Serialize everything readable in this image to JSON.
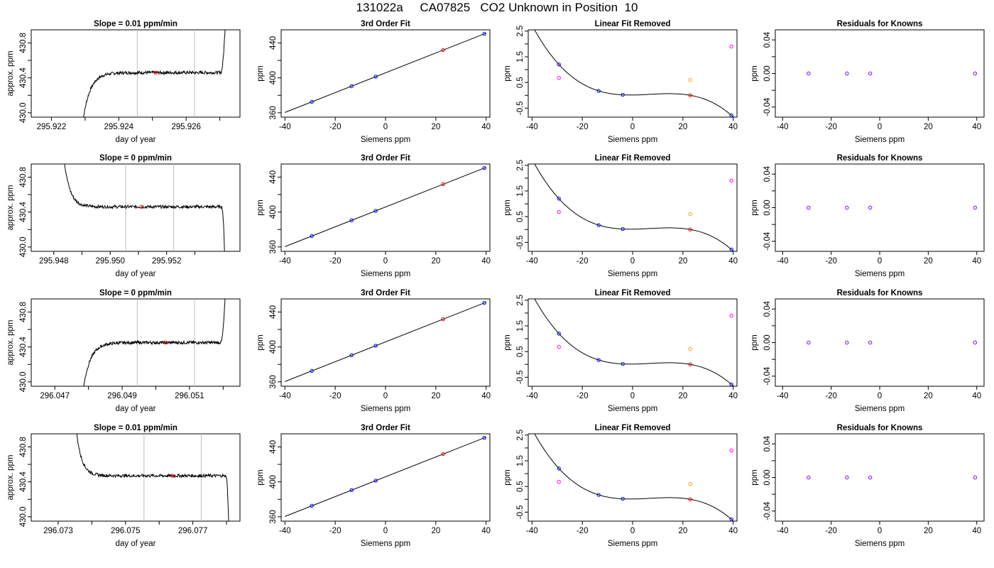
{
  "page_title": "131022a     CA07825   CO2 Unknown in Position  10",
  "colors": {
    "series_line": "#000000",
    "marker_blue": "#0000ff",
    "marker_red": "#ff0000",
    "marker_magenta": "#ff00ff",
    "marker_orange": "#ffa500",
    "marker_purple": "#7f00ff",
    "vertical_lines": "#bebebe"
  },
  "chart_data": [
    {
      "row": 0,
      "type": "line",
      "title": "Slope =  0.01  ppm/min",
      "xlabel": "day of year",
      "ylabel": "approx. ppm",
      "xlim": [
        295.9214,
        295.9276
      ],
      "ylim": [
        429.95,
        430.95
      ],
      "xticks": [
        "295.922",
        "295.924",
        "295.926"
      ],
      "xtick_values": [
        295.922,
        295.924,
        295.926
      ],
      "xtick_minor": [
        295.923,
        295.925,
        295.927
      ],
      "yticks": [
        "430.0",
        "430.4",
        "430.8"
      ],
      "ytick_values": [
        430.0,
        430.4,
        430.8
      ],
      "ytick_minor": [
        430.2,
        430.6
      ],
      "shape": "rise",
      "start_x": 295.9229,
      "end_x": 295.9272,
      "level": 430.46,
      "vlines": [
        295.92455,
        295.92625
      ],
      "avg_point": [
        295.9251,
        430.46
      ]
    },
    {
      "row": 0,
      "type": "scatter",
      "title": "3rd Order Fit",
      "xlabel": "Siemens ppm",
      "ylabel": "ppm",
      "xlim": [
        -41.5,
        41.5
      ],
      "ylim": [
        355,
        455
      ],
      "xticks": [
        "-40",
        "-20",
        "0",
        "20",
        "40"
      ],
      "xtick_values": [
        -40,
        -20,
        0,
        20,
        40
      ],
      "yticks": [
        "360",
        "400",
        "440"
      ],
      "ytick_values": [
        360,
        400,
        440
      ],
      "ytick_minor": [
        380,
        420
      ],
      "fit_line": [
        [
          -40,
          360.4
        ],
        [
          40,
          451.2
        ]
      ],
      "points": [
        {
          "x": -29.3,
          "y": 372.6,
          "color": "blue"
        },
        {
          "x": -13.5,
          "y": 390.5,
          "color": "blue"
        },
        {
          "x": -3.9,
          "y": 401.4,
          "color": "blue"
        },
        {
          "x": 39.3,
          "y": 450.5,
          "color": "blue"
        },
        {
          "x": 22.9,
          "y": 431.9,
          "color": "red"
        }
      ]
    },
    {
      "row": 0,
      "type": "scatter",
      "title": "Linear Fit Removed",
      "xlabel": "Siemens ppm",
      "ylabel": "ppm",
      "xlim": [
        -41.5,
        41.5
      ],
      "ylim": [
        -0.85,
        2.55
      ],
      "xticks": [
        "-40",
        "-20",
        "0",
        "20",
        "40"
      ],
      "xtick_values": [
        -40,
        -20,
        0,
        20,
        40
      ],
      "yticks": [
        "-0.5",
        "0.5",
        "1.5",
        "2.5"
      ],
      "ytick_values": [
        -0.5,
        0.5,
        1.5,
        2.5
      ],
      "ytick_minor": [
        0,
        1,
        2
      ],
      "curve": "cubic",
      "points": [
        {
          "x": -29.3,
          "y": 1.2,
          "color": "blue"
        },
        {
          "x": -13.5,
          "y": 0.17,
          "color": "blue"
        },
        {
          "x": -3.9,
          "y": 0.02,
          "color": "blue"
        },
        {
          "x": 39.3,
          "y": -0.78,
          "color": "blue"
        },
        {
          "x": 22.9,
          "y": 0.0,
          "color": "red"
        },
        {
          "x": -29.3,
          "y": 0.68,
          "color": "magenta"
        },
        {
          "x": 39.3,
          "y": 1.9,
          "color": "magenta"
        },
        {
          "x": 22.9,
          "y": 0.6,
          "color": "orange"
        }
      ]
    },
    {
      "row": 0,
      "type": "scatter",
      "title": "Residuals for Knowns",
      "xlabel": "Siemens ppm",
      "ylabel": "ppm",
      "xlim": [
        -43,
        43
      ],
      "ylim": [
        -0.052,
        0.052
      ],
      "xticks": [
        "-40",
        "-20",
        "0",
        "20",
        "40"
      ],
      "xtick_values": [
        -40,
        -20,
        0,
        20,
        40
      ],
      "yticks": [
        "-0.04",
        "0.00",
        "0.04"
      ],
      "ytick_values": [
        -0.04,
        0.0,
        0.04
      ],
      "ytick_minor": [
        -0.02,
        0.02
      ],
      "points": [
        {
          "x": -29.3,
          "y": 0,
          "color": "purple"
        },
        {
          "x": -13.5,
          "y": 0,
          "color": "purple"
        },
        {
          "x": -3.9,
          "y": 0,
          "color": "purple"
        },
        {
          "x": 39.3,
          "y": 0,
          "color": "purple"
        }
      ]
    },
    {
      "row": 1,
      "type": "line",
      "title": "Slope =  0  ppm/min",
      "xlabel": "day of year",
      "ylabel": "approx. ppm",
      "xlim": [
        295.9472,
        295.9546
      ],
      "ylim": [
        429.95,
        430.95
      ],
      "xticks": [
        "295.948",
        "295.950",
        "295.952"
      ],
      "xtick_values": [
        295.948,
        295.95,
        295.952
      ],
      "xtick_minor": [
        295.949,
        295.951,
        295.953
      ],
      "yticks": [
        "430.0",
        "430.4",
        "430.8"
      ],
      "ytick_values": [
        430.0,
        430.4,
        430.8
      ],
      "ytick_minor": [
        430.2,
        430.6
      ],
      "shape": "fall",
      "start_x": 295.9482,
      "end_x": 295.9541,
      "level": 430.46,
      "vlines": [
        295.95055,
        295.95225
      ],
      "avg_point": [
        295.9511,
        430.46
      ]
    },
    {
      "row": 1,
      "type": "scatter",
      "title": "3rd Order Fit",
      "xlabel": "Siemens ppm",
      "ylabel": "ppm",
      "xlim": [
        -41.5,
        41.5
      ],
      "ylim": [
        355,
        455
      ],
      "xticks": [
        "-40",
        "-20",
        "0",
        "20",
        "40"
      ],
      "xtick_values": [
        -40,
        -20,
        0,
        20,
        40
      ],
      "yticks": [
        "360",
        "400",
        "440"
      ],
      "ytick_values": [
        360,
        400,
        440
      ],
      "ytick_minor": [
        380,
        420
      ],
      "fit_line": [
        [
          -40,
          360.4
        ],
        [
          40,
          451.2
        ]
      ],
      "points": [
        {
          "x": -29.3,
          "y": 372.6,
          "color": "blue"
        },
        {
          "x": -13.5,
          "y": 390.5,
          "color": "blue"
        },
        {
          "x": -3.9,
          "y": 401.4,
          "color": "blue"
        },
        {
          "x": 39.3,
          "y": 450.5,
          "color": "blue"
        },
        {
          "x": 22.9,
          "y": 431.9,
          "color": "red"
        }
      ]
    },
    {
      "row": 1,
      "type": "scatter",
      "title": "Linear Fit Removed",
      "xlabel": "Siemens ppm",
      "ylabel": "ppm",
      "xlim": [
        -41.5,
        41.5
      ],
      "ylim": [
        -0.85,
        2.55
      ],
      "xticks": [
        "-40",
        "-20",
        "0",
        "20",
        "40"
      ],
      "xtick_values": [
        -40,
        -20,
        0,
        20,
        40
      ],
      "yticks": [
        "-0.5",
        "0.5",
        "1.5",
        "2.5"
      ],
      "ytick_values": [
        -0.5,
        0.5,
        1.5,
        2.5
      ],
      "ytick_minor": [
        0,
        1,
        2
      ],
      "curve": "cubic",
      "points": [
        {
          "x": -29.3,
          "y": 1.2,
          "color": "blue"
        },
        {
          "x": -13.5,
          "y": 0.17,
          "color": "blue"
        },
        {
          "x": -3.9,
          "y": 0.02,
          "color": "blue"
        },
        {
          "x": 39.3,
          "y": -0.78,
          "color": "blue"
        },
        {
          "x": 22.9,
          "y": 0.0,
          "color": "red"
        },
        {
          "x": -29.3,
          "y": 0.68,
          "color": "magenta"
        },
        {
          "x": 39.3,
          "y": 1.9,
          "color": "magenta"
        },
        {
          "x": 22.9,
          "y": 0.6,
          "color": "orange"
        }
      ]
    },
    {
      "row": 1,
      "type": "scatter",
      "title": "Residuals for Knowns",
      "xlabel": "Siemens ppm",
      "ylabel": "ppm",
      "xlim": [
        -43,
        43
      ],
      "ylim": [
        -0.052,
        0.052
      ],
      "xticks": [
        "-40",
        "-20",
        "0",
        "20",
        "40"
      ],
      "xtick_values": [
        -40,
        -20,
        0,
        20,
        40
      ],
      "yticks": [
        "-0.04",
        "0.00",
        "0.04"
      ],
      "ytick_values": [
        -0.04,
        0.0,
        0.04
      ],
      "ytick_minor": [
        -0.02,
        0.02
      ],
      "points": [
        {
          "x": -29.3,
          "y": 0,
          "color": "purple"
        },
        {
          "x": -13.5,
          "y": 0,
          "color": "purple"
        },
        {
          "x": -3.9,
          "y": 0,
          "color": "purple"
        },
        {
          "x": 39.3,
          "y": 0,
          "color": "purple"
        }
      ]
    },
    {
      "row": 2,
      "type": "line",
      "title": "Slope =  0  ppm/min",
      "xlabel": "day of year",
      "ylabel": "approx. ppm",
      "xlim": [
        296.0463,
        296.0525
      ],
      "ylim": [
        429.95,
        430.95
      ],
      "xticks": [
        "296.047",
        "296.049",
        "296.051"
      ],
      "xtick_values": [
        296.047,
        296.049,
        296.051
      ],
      "xtick_minor": [
        296.048,
        296.05,
        296.052
      ],
      "yticks": [
        "430.0",
        "430.4",
        "430.8"
      ],
      "ytick_values": [
        430.0,
        430.4,
        430.8
      ],
      "ytick_minor": [
        430.2,
        430.6
      ],
      "shape": "rise",
      "start_x": 296.0478,
      "end_x": 296.0521,
      "level": 430.45,
      "vlines": [
        296.04945,
        296.05115
      ],
      "avg_point": [
        296.0503,
        430.45
      ]
    },
    {
      "row": 2,
      "type": "scatter",
      "title": "3rd Order Fit",
      "xlabel": "Siemens ppm",
      "ylabel": "ppm",
      "xlim": [
        -41.5,
        41.5
      ],
      "ylim": [
        355,
        455
      ],
      "xticks": [
        "-40",
        "-20",
        "0",
        "20",
        "40"
      ],
      "xtick_values": [
        -40,
        -20,
        0,
        20,
        40
      ],
      "yticks": [
        "360",
        "400",
        "440"
      ],
      "ytick_values": [
        360,
        400,
        440
      ],
      "ytick_minor": [
        380,
        420
      ],
      "fit_line": [
        [
          -40,
          360.4
        ],
        [
          40,
          451.2
        ]
      ],
      "points": [
        {
          "x": -29.3,
          "y": 372.6,
          "color": "blue"
        },
        {
          "x": -13.5,
          "y": 390.5,
          "color": "blue"
        },
        {
          "x": -3.9,
          "y": 401.4,
          "color": "blue"
        },
        {
          "x": 39.3,
          "y": 450.5,
          "color": "blue"
        },
        {
          "x": 22.9,
          "y": 431.9,
          "color": "red"
        }
      ]
    },
    {
      "row": 2,
      "type": "scatter",
      "title": "Linear Fit Removed",
      "xlabel": "Siemens ppm",
      "ylabel": "ppm",
      "xlim": [
        -41.5,
        41.5
      ],
      "ylim": [
        -0.85,
        2.55
      ],
      "xticks": [
        "-40",
        "-20",
        "0",
        "20",
        "40"
      ],
      "xtick_values": [
        -40,
        -20,
        0,
        20,
        40
      ],
      "yticks": [
        "-0.5",
        "0.5",
        "1.5",
        "2.5"
      ],
      "ytick_values": [
        -0.5,
        0.5,
        1.5,
        2.5
      ],
      "ytick_minor": [
        0,
        1,
        2
      ],
      "curve": "cubic",
      "points": [
        {
          "x": -29.3,
          "y": 1.2,
          "color": "blue"
        },
        {
          "x": -13.5,
          "y": 0.17,
          "color": "blue"
        },
        {
          "x": -3.9,
          "y": 0.02,
          "color": "blue"
        },
        {
          "x": 39.3,
          "y": -0.78,
          "color": "blue"
        },
        {
          "x": 22.9,
          "y": 0.0,
          "color": "red"
        },
        {
          "x": -29.3,
          "y": 0.68,
          "color": "magenta"
        },
        {
          "x": 39.3,
          "y": 1.9,
          "color": "magenta"
        },
        {
          "x": 22.9,
          "y": 0.6,
          "color": "orange"
        }
      ]
    },
    {
      "row": 2,
      "type": "scatter",
      "title": "Residuals for Knowns",
      "xlabel": "Siemens ppm",
      "ylabel": "ppm",
      "xlim": [
        -43,
        43
      ],
      "ylim": [
        -0.052,
        0.052
      ],
      "xticks": [
        "-40",
        "-20",
        "0",
        "20",
        "40"
      ],
      "xtick_values": [
        -40,
        -20,
        0,
        20,
        40
      ],
      "yticks": [
        "-0.04",
        "0.00",
        "0.04"
      ],
      "ytick_values": [
        -0.04,
        0.0,
        0.04
      ],
      "ytick_minor": [
        -0.02,
        0.02
      ],
      "points": [
        {
          "x": -29.3,
          "y": 0,
          "color": "purple"
        },
        {
          "x": -13.5,
          "y": 0,
          "color": "purple"
        },
        {
          "x": -3.9,
          "y": 0,
          "color": "purple"
        },
        {
          "x": 39.3,
          "y": 0,
          "color": "purple"
        }
      ]
    },
    {
      "row": 3,
      "type": "line",
      "title": "Slope =  0.01  ppm/min",
      "xlabel": "day of year",
      "ylabel": "approx. ppm",
      "xlim": [
        296.0722,
        296.0784
      ],
      "ylim": [
        429.95,
        430.95
      ],
      "xticks": [
        "296.073",
        "296.075",
        "296.077"
      ],
      "xtick_values": [
        296.073,
        296.075,
        296.077
      ],
      "xtick_minor": [
        296.074,
        296.076,
        296.078
      ],
      "yticks": [
        "430.0",
        "430.4",
        "430.8"
      ],
      "ytick_values": [
        430.0,
        430.4,
        430.8
      ],
      "ytick_minor": [
        430.2,
        430.6
      ],
      "shape": "fall",
      "start_x": 296.0734,
      "end_x": 296.0781,
      "level": 430.47,
      "vlines": [
        296.07555,
        296.07725
      ],
      "avg_point": [
        296.0764,
        430.47
      ]
    },
    {
      "row": 3,
      "type": "scatter",
      "title": "3rd Order Fit",
      "xlabel": "Siemens ppm",
      "ylabel": "ppm",
      "xlim": [
        -41.5,
        41.5
      ],
      "ylim": [
        355,
        455
      ],
      "xticks": [
        "-40",
        "-20",
        "0",
        "20",
        "40"
      ],
      "xtick_values": [
        -40,
        -20,
        0,
        20,
        40
      ],
      "yticks": [
        "360",
        "400",
        "440"
      ],
      "ytick_values": [
        360,
        400,
        440
      ],
      "ytick_minor": [
        380,
        420
      ],
      "fit_line": [
        [
          -40,
          360.4
        ],
        [
          40,
          451.2
        ]
      ],
      "points": [
        {
          "x": -29.3,
          "y": 372.6,
          "color": "blue"
        },
        {
          "x": -13.5,
          "y": 390.5,
          "color": "blue"
        },
        {
          "x": -3.9,
          "y": 401.4,
          "color": "blue"
        },
        {
          "x": 39.3,
          "y": 450.5,
          "color": "blue"
        },
        {
          "x": 22.9,
          "y": 431.9,
          "color": "red"
        }
      ]
    },
    {
      "row": 3,
      "type": "scatter",
      "title": "Linear Fit Removed",
      "xlabel": "Siemens ppm",
      "ylabel": "ppm",
      "xlim": [
        -41.5,
        41.5
      ],
      "ylim": [
        -0.85,
        2.55
      ],
      "xticks": [
        "-40",
        "-20",
        "0",
        "20",
        "40"
      ],
      "xtick_values": [
        -40,
        -20,
        0,
        20,
        40
      ],
      "yticks": [
        "-0.5",
        "0.5",
        "1.5",
        "2.5"
      ],
      "ytick_values": [
        -0.5,
        0.5,
        1.5,
        2.5
      ],
      "ytick_minor": [
        0,
        1,
        2
      ],
      "curve": "cubic",
      "points": [
        {
          "x": -29.3,
          "y": 1.2,
          "color": "blue"
        },
        {
          "x": -13.5,
          "y": 0.17,
          "color": "blue"
        },
        {
          "x": -3.9,
          "y": 0.02,
          "color": "blue"
        },
        {
          "x": 39.3,
          "y": -0.78,
          "color": "blue"
        },
        {
          "x": 22.9,
          "y": 0.0,
          "color": "red"
        },
        {
          "x": -29.3,
          "y": 0.68,
          "color": "magenta"
        },
        {
          "x": 39.3,
          "y": 1.9,
          "color": "magenta"
        },
        {
          "x": 22.9,
          "y": 0.6,
          "color": "orange"
        }
      ]
    },
    {
      "row": 3,
      "type": "scatter",
      "title": "Residuals for Knowns",
      "xlabel": "Siemens ppm",
      "ylabel": "ppm",
      "xlim": [
        -43,
        43
      ],
      "ylim": [
        -0.052,
        0.052
      ],
      "xticks": [
        "-40",
        "-20",
        "0",
        "20",
        "40"
      ],
      "xtick_values": [
        -40,
        -20,
        0,
        20,
        40
      ],
      "yticks": [
        "-0.04",
        "0.00",
        "0.04"
      ],
      "ytick_values": [
        -0.04,
        0.0,
        0.04
      ],
      "ytick_minor": [
        -0.02,
        0.02
      ],
      "points": [
        {
          "x": -29.3,
          "y": 0,
          "color": "purple"
        },
        {
          "x": -13.5,
          "y": 0,
          "color": "purple"
        },
        {
          "x": -3.9,
          "y": 0,
          "color": "purple"
        },
        {
          "x": 39.3,
          "y": 0,
          "color": "purple"
        }
      ]
    }
  ]
}
